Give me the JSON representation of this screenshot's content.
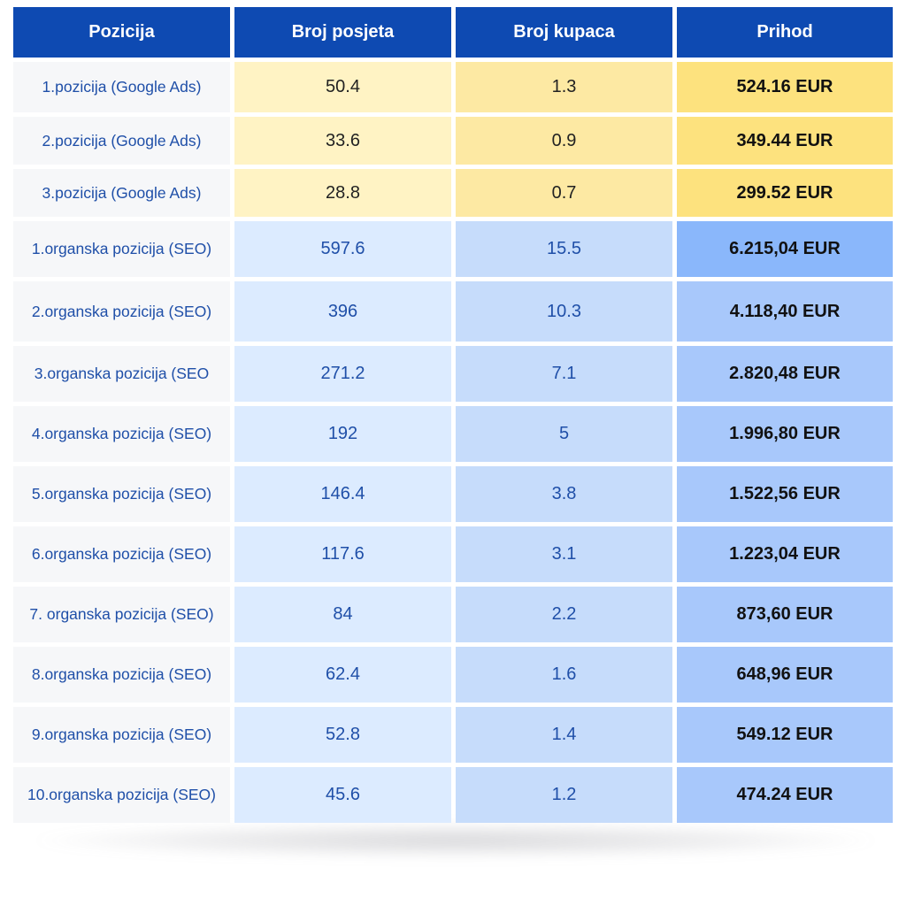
{
  "headers": {
    "position": "Pozicija",
    "visits": "Broj posjeta",
    "buyers": "Broj kupaca",
    "revenue": "Prihod"
  },
  "rows": [
    {
      "position": "1.pozicija (Google Ads)",
      "visits": "50.4",
      "buyers": "1.3",
      "revenue": "524.16 EUR",
      "group": "ads"
    },
    {
      "position": "2.pozicija (Google Ads)",
      "visits": "33.6",
      "buyers": "0.9",
      "revenue": "349.44 EUR",
      "group": "ads"
    },
    {
      "position": "3.pozicija (Google Ads)",
      "visits": "28.8",
      "buyers": "0.7",
      "revenue": "299.52 EUR",
      "group": "ads"
    },
    {
      "position": "1.organska pozicija (SEO)",
      "visits": "597.6",
      "buyers": "15.5",
      "revenue": "6.215,04 EUR",
      "group": "seo"
    },
    {
      "position": "2.organska pozicija (SEO)",
      "visits": "396",
      "buyers": "10.3",
      "revenue": "4.118,40 EUR",
      "group": "seo"
    },
    {
      "position": "3.organska pozicija (SEO",
      "visits": "271.2",
      "buyers": "7.1",
      "revenue": "2.820,48 EUR",
      "group": "seo"
    },
    {
      "position": "4.organska pozicija (SEO)",
      "visits": "192",
      "buyers": "5",
      "revenue": "1.996,80 EUR",
      "group": "seo"
    },
    {
      "position": "5.organska pozicija (SEO)",
      "visits": "146.4",
      "buyers": "3.8",
      "revenue": "1.522,56 EUR",
      "group": "seo"
    },
    {
      "position": "6.organska pozicija (SEO)",
      "visits": "117.6",
      "buyers": "3.1",
      "revenue": "1.223,04 EUR",
      "group": "seo"
    },
    {
      "position": "7. organska pozicija (SEO)",
      "visits": "84",
      "buyers": "2.2",
      "revenue": "873,60 EUR",
      "group": "seo"
    },
    {
      "position": "8.organska pozicija (SEO)",
      "visits": "62.4",
      "buyers": "1.6",
      "revenue": "648,96 EUR",
      "group": "seo"
    },
    {
      "position": "9.organska pozicija (SEO)",
      "visits": "52.8",
      "buyers": "1.4",
      "revenue": "549.12 EUR",
      "group": "seo"
    },
    {
      "position": "10.organska pozicija (SEO)",
      "visits": "45.6",
      "buyers": "1.2",
      "revenue": "474.24 EUR",
      "group": "seo"
    }
  ],
  "colors": {
    "header_bg": "#0e4ab2",
    "ads_revenue": "#fde27e",
    "seo_revenue": "#a8c8fb",
    "label_text": "#1f4fa8"
  },
  "chart_data": {
    "type": "table",
    "columns": [
      "Pozicija",
      "Broj posjeta",
      "Broj kupaca",
      "Prihod"
    ],
    "rows": [
      [
        "1.pozicija (Google Ads)",
        50.4,
        1.3,
        "524.16 EUR"
      ],
      [
        "2.pozicija (Google Ads)",
        33.6,
        0.9,
        "349.44 EUR"
      ],
      [
        "3.pozicija (Google Ads)",
        28.8,
        0.7,
        "299.52 EUR"
      ],
      [
        "1.organska pozicija (SEO)",
        597.6,
        15.5,
        "6.215,04 EUR"
      ],
      [
        "2.organska pozicija (SEO)",
        396,
        10.3,
        "4.118,40 EUR"
      ],
      [
        "3.organska pozicija (SEO",
        271.2,
        7.1,
        "2.820,48 EUR"
      ],
      [
        "4.organska pozicija (SEO)",
        192,
        5,
        "1.996,80 EUR"
      ],
      [
        "5.organska pozicija (SEO)",
        146.4,
        3.8,
        "1.522,56 EUR"
      ],
      [
        "6.organska pozicija (SEO)",
        117.6,
        3.1,
        "1.223,04 EUR"
      ],
      [
        "7. organska pozicija (SEO)",
        84,
        2.2,
        "873,60 EUR"
      ],
      [
        "8.organska pozicija (SEO)",
        62.4,
        1.6,
        "648,96 EUR"
      ],
      [
        "9.organska pozicija (SEO)",
        52.8,
        1.4,
        "549.12 EUR"
      ],
      [
        "10.organska pozicija (SEO)",
        45.6,
        1.2,
        "474.24 EUR"
      ]
    ]
  }
}
